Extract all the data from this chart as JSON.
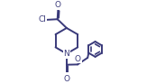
{
  "bg_color": "#ffffff",
  "bond_color": "#3a3a7a",
  "atom_color": "#3a3a7a",
  "line_width": 1.4,
  "font_size": 6.5,
  "fig_width": 1.83,
  "fig_height": 0.93,
  "dpi": 100,
  "xlim": [
    0,
    10
  ],
  "ylim": [
    0,
    5.1
  ]
}
